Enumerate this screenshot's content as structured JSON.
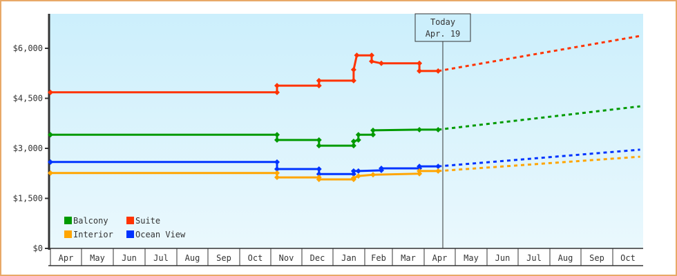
{
  "chart_data": {
    "type": "line",
    "title": "",
    "xlabel": "",
    "ylabel": "",
    "ylim": [
      0,
      7000
    ],
    "y_ticks": [
      {
        "label": "$0",
        "value": 0
      },
      {
        "label": "$1,500",
        "value": 1500
      },
      {
        "label": "$3,000",
        "value": 3000
      },
      {
        "label": "$4,500",
        "value": 4500
      },
      {
        "label": "$6,000",
        "value": 6000
      }
    ],
    "x_ticks": [
      "Apr",
      "May",
      "Jun",
      "Jul",
      "Aug",
      "Sep",
      "Oct",
      "Nov",
      "Dec",
      "Jan",
      "Feb",
      "Mar",
      "Apr",
      "May",
      "Jun",
      "Jul",
      "Aug",
      "Sep",
      "Oct"
    ],
    "today_marker": {
      "line1": "Today",
      "line2": "Apr. 19"
    },
    "legend": [
      {
        "label": "Balcony",
        "color": "#009a00"
      },
      {
        "label": "Suite",
        "color": "#ff3300"
      },
      {
        "label": "Interior",
        "color": "#ffa500"
      },
      {
        "label": "Ocean View",
        "color": "#0033ff"
      }
    ],
    "legend_position": "lower-left",
    "note": "x positions are month index (0 = first Apr); solid lines = historical step prices, dashed = forecast after Today",
    "series": [
      {
        "name": "Suite",
        "color": "#ff3300",
        "points": [
          [
            0,
            4680
          ],
          [
            7.2,
            4680
          ],
          [
            7.2,
            4880
          ],
          [
            8.55,
            4880
          ],
          [
            8.55,
            5030
          ],
          [
            9.65,
            5030
          ],
          [
            9.65,
            5360
          ],
          [
            9.75,
            5790
          ],
          [
            10.25,
            5790
          ],
          [
            10.25,
            5610
          ],
          [
            10.6,
            5550
          ],
          [
            11.85,
            5550
          ],
          [
            11.85,
            5320
          ],
          [
            12.45,
            5320
          ]
        ],
        "forecast": [
          [
            12.45,
            5320
          ],
          [
            18.9,
            6370
          ]
        ]
      },
      {
        "name": "Balcony",
        "color": "#009a00",
        "points": [
          [
            0,
            3410
          ],
          [
            7.2,
            3410
          ],
          [
            7.2,
            3250
          ],
          [
            8.55,
            3250
          ],
          [
            8.55,
            3080
          ],
          [
            9.65,
            3080
          ],
          [
            9.65,
            3210
          ],
          [
            9.8,
            3250
          ],
          [
            9.8,
            3410
          ],
          [
            10.3,
            3410
          ],
          [
            10.3,
            3540
          ],
          [
            11.85,
            3560
          ],
          [
            12.45,
            3560
          ]
        ],
        "forecast": [
          [
            12.45,
            3560
          ],
          [
            18.9,
            4260
          ]
        ]
      },
      {
        "name": "Ocean View",
        "color": "#0033ff",
        "points": [
          [
            0,
            2590
          ],
          [
            7.2,
            2590
          ],
          [
            7.2,
            2380
          ],
          [
            8.55,
            2380
          ],
          [
            8.55,
            2230
          ],
          [
            9.65,
            2230
          ],
          [
            9.65,
            2320
          ],
          [
            9.8,
            2320
          ],
          [
            10.6,
            2340
          ],
          [
            10.6,
            2400
          ],
          [
            11.85,
            2400
          ],
          [
            11.85,
            2460
          ],
          [
            12.45,
            2460
          ]
        ],
        "forecast": [
          [
            12.45,
            2460
          ],
          [
            18.9,
            2960
          ]
        ]
      },
      {
        "name": "Interior",
        "color": "#ffa500",
        "points": [
          [
            0,
            2260
          ],
          [
            7.2,
            2260
          ],
          [
            7.2,
            2130
          ],
          [
            8.55,
            2130
          ],
          [
            8.55,
            2070
          ],
          [
            9.65,
            2070
          ],
          [
            9.65,
            2110
          ],
          [
            9.8,
            2170
          ],
          [
            10.3,
            2210
          ],
          [
            11.85,
            2240
          ],
          [
            11.85,
            2320
          ],
          [
            12.45,
            2320
          ]
        ],
        "forecast": [
          [
            12.45,
            2320
          ],
          [
            18.9,
            2750
          ]
        ]
      }
    ]
  },
  "colors": {
    "frame": "#e8a868",
    "plot_bg_top": "#cceffc",
    "plot_bg_bottom": "#eaf8fd",
    "axis": "#333333"
  }
}
